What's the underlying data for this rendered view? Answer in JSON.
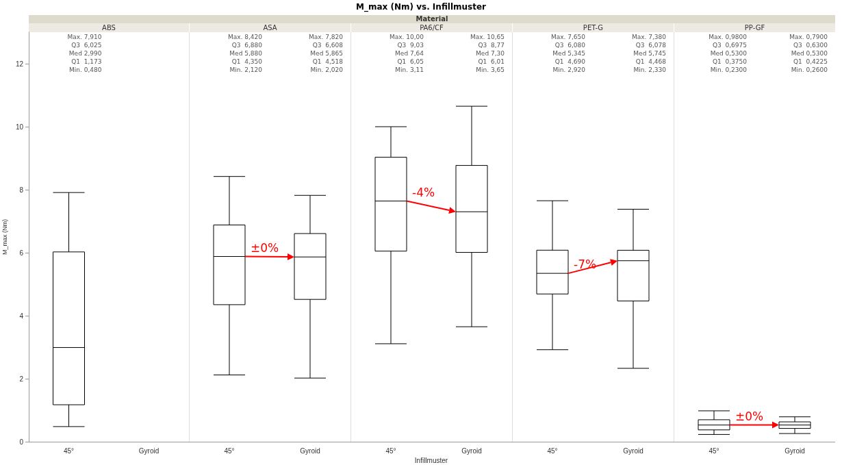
{
  "chart_data": [
    {
      "type": "box",
      "title": "ABS",
      "ylabel": "M_max (Nm)",
      "categories": [
        "45°",
        "Gyroid"
      ],
      "ylim": [
        0,
        13
      ],
      "yticks": [
        0,
        2,
        4,
        6,
        8,
        10,
        12
      ],
      "grid": false,
      "boxes": [
        {
          "low": 0.48,
          "q1": 1.173,
          "median": 2.99,
          "q3": 6.025,
          "high": 7.91
        },
        null
      ],
      "annotations": [
        "Max. 7,910",
        "Q3  6,025",
        "Med 2,990",
        "Q1  1,173",
        "Min. 0,480"
      ]
    },
    {
      "type": "box",
      "title": "ASA",
      "categories": [
        "45°",
        "Gyroid"
      ],
      "ylim": [
        0,
        13
      ],
      "yticks": [
        0,
        2,
        4,
        6,
        8,
        10,
        12
      ],
      "grid": false,
      "tick_labels": "x",
      "boxes": [
        {
          "low": 2.12,
          "q1": 4.35,
          "median": 5.88,
          "q3": 6.88,
          "high": 8.42
        },
        {
          "low": 2.02,
          "q1": 4.518,
          "median": 5.865,
          "q3": 6.608,
          "high": 7.82
        }
      ],
      "annotations": [
        "Max. 8,420",
        "Q3  6,880",
        "Med 5,880",
        "Q1  4,350",
        "Min. 2,120",
        "Max. 7,820",
        "Q3  6,608",
        "Med 5,865",
        "Q1  4,518",
        "Min. 2,020",
        {
          "text": "±0%",
          "x": "45°",
          "y": 5.88
        }
      ]
    },
    {
      "type": "box",
      "title": "PA6/CF",
      "subtitle": "M_max (Nm) vs. Infillmuster",
      "legend_title": "Material",
      "xlabel": "Infillmuster",
      "categories": [
        "45°",
        "Gyroid"
      ],
      "ylim": [
        0,
        13
      ],
      "yticks": [
        0,
        2,
        4,
        6,
        8,
        10,
        12
      ],
      "grid": false,
      "tick_labels": "x",
      "boxes": [
        {
          "low": 3.11,
          "q1": 6.05,
          "median": 7.64,
          "q3": 9.03,
          "high": 10.0
        },
        {
          "low": 3.65,
          "q1": 6.01,
          "median": 7.3,
          "q3": 8.77,
          "high": 10.65
        }
      ],
      "annotations": [
        "Max. 10,00",
        "Q3  9,03",
        "Med 7,64",
        "Q1  6,05",
        "Min. 3,11",
        "Max. 10,65",
        "Q3  8,77",
        "Med 7,30",
        "Q1  6,01",
        "Min. 3,65",
        {
          "text": "-4%",
          "x": "45°",
          "y": 7.64
        }
      ]
    },
    {
      "type": "box",
      "title": "PET-G",
      "categories": [
        "45°",
        "Gyroid"
      ],
      "ylim": [
        0,
        13
      ],
      "yticks": [
        0,
        2,
        4,
        6,
        8,
        10,
        12
      ],
      "grid": false,
      "tick_labels": "x",
      "boxes": [
        {
          "low": 2.92,
          "q1": 4.69,
          "median": 5.345,
          "q3": 6.08,
          "high": 7.65
        },
        {
          "low": 2.33,
          "q1": 4.468,
          "median": 5.745,
          "q3": 6.078,
          "high": 7.38
        }
      ],
      "annotations": [
        "Max. 7,650",
        "Q3  6,080",
        "Med 5,345",
        "Q1  4,690",
        "Min. 2,920",
        "Max. 7,380",
        "Q3  6,078",
        "Med 5,745",
        "Q1  4,468",
        "Min. 2,330",
        {
          "text": "-7%",
          "x": "45°",
          "y": 5.345
        }
      ]
    },
    {
      "type": "box",
      "title": "PP-GF",
      "categories": [
        "45°",
        "Gyroid"
      ],
      "ylim": [
        0,
        13
      ],
      "yticks": [
        0,
        2,
        4,
        6,
        8,
        10,
        12
      ],
      "grid": false,
      "tick_labels": "x",
      "boxes": [
        {
          "low": 0.23,
          "q1": 0.375,
          "median": 0.53,
          "q3": 0.6975,
          "high": 0.98
        },
        {
          "low": 0.26,
          "q1": 0.4225,
          "median": 0.53,
          "q3": 0.63,
          "high": 0.79
        }
      ],
      "annotations": [
        "Max. 0,9800",
        "Q3  0,6975",
        "Med 0,5300",
        "Q1  0,3750",
        "Min. 0,2300",
        "Max. 0,7900",
        "Q3  0,6300",
        "Med 0,5300",
        "Q1  0,4225",
        "Min. 0,2600",
        {
          "text": "±0%",
          "x": "45°",
          "y": 0.53
        }
      ]
    }
  ]
}
